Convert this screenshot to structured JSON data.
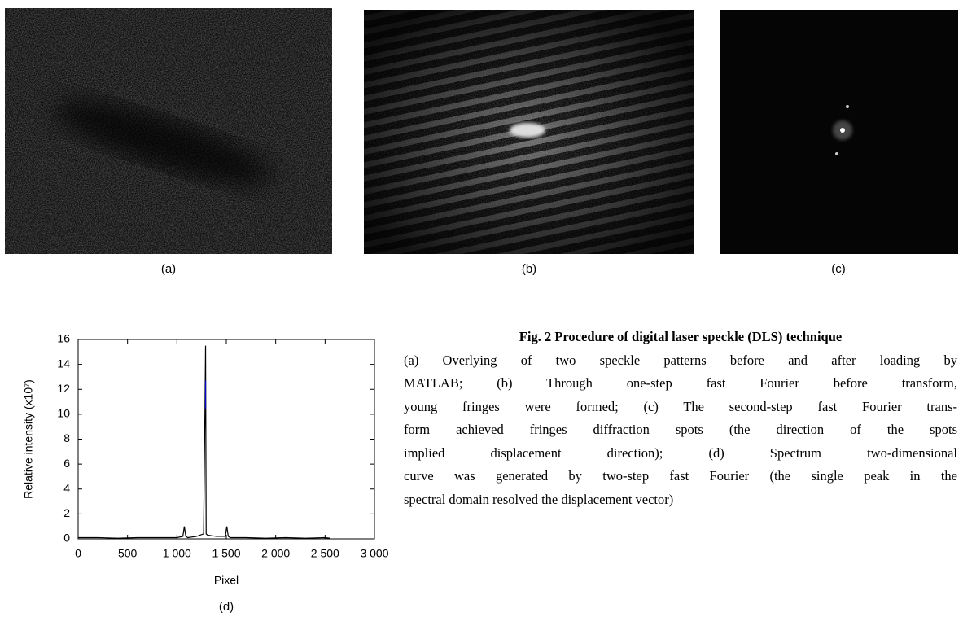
{
  "panels": [
    {
      "label": "(a)"
    },
    {
      "label": "(b)"
    },
    {
      "label": "(c)"
    },
    {
      "label": "(d)"
    }
  ],
  "caption": {
    "title": "Fig. 2  Procedure of digital laser speckle (DLS) technique",
    "lines": [
      "(a) Overlying of two speckle patterns before and after loading by",
      "MATLAB; (b) Through one-step fast Fourier before transform,",
      "young fringes were formed; (c) The second-step fast Fourier trans-",
      "form achieved fringes diffraction spots (the direction of the spots",
      "implied displacement direction); (d) Spectrum two-dimensional",
      "curve was generated by two-step fast Fourier (the single peak in the",
      "spectral domain resolved the displacement vector)"
    ]
  },
  "chart_data": {
    "type": "line",
    "xlabel": "Pixel",
    "ylabel": "Relative intensity (x10⁷)",
    "xlim": [
      0,
      3000
    ],
    "ylim": [
      0,
      16
    ],
    "xticks": [
      0,
      500,
      {
        "value": 1000,
        "label": "1 000"
      },
      {
        "value": 1500,
        "label": "1 500"
      },
      {
        "value": 2000,
        "label": "2 000"
      },
      {
        "value": 2500,
        "label": "2 500"
      },
      {
        "value": 3000,
        "label": "3 000"
      }
    ],
    "yticks": [
      0,
      2,
      4,
      6,
      8,
      10,
      12,
      14,
      16
    ],
    "series": [
      {
        "color": "#000000",
        "x": [
          0,
          200,
          400,
          600,
          800,
          1000,
          1060,
          1075,
          1090,
          1110,
          1200,
          1270,
          1284,
          1290,
          1296,
          1310,
          1400,
          1490,
          1505,
          1520,
          1540,
          1700,
          1900,
          2100,
          2300,
          2500,
          2550
        ],
        "values": [
          0.1,
          0.1,
          0.05,
          0.1,
          0.1,
          0.1,
          0.2,
          1.0,
          0.2,
          0.1,
          0.2,
          0.4,
          10.4,
          15.5,
          0.4,
          0.3,
          0.2,
          0.2,
          1.0,
          0.2,
          0.1,
          0.1,
          0.05,
          0.1,
          0.05,
          0.1,
          0.05
        ]
      },
      {
        "color": "#0000cc",
        "x": [
          1290,
          1290
        ],
        "values": [
          10.4,
          12.7
        ]
      }
    ]
  }
}
